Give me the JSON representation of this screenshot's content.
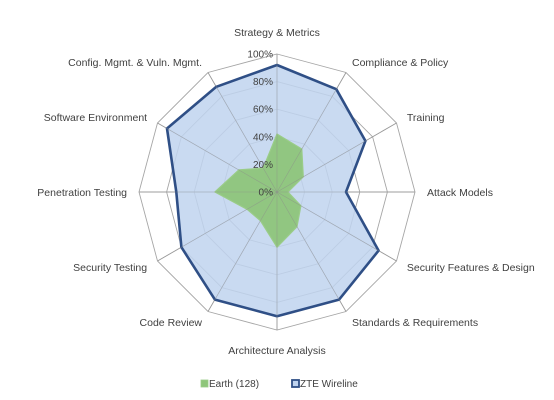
{
  "chart_data": {
    "type": "radar",
    "title": "",
    "categories": [
      "Strategy & Metrics",
      "Compliance & Policy",
      "Training",
      "Attack Models",
      "Security Features & Design",
      "Standards & Requirements",
      "Architecture Analysis",
      "Code Review",
      "Security Testing",
      "Penetration Testing",
      "Software Environment",
      "Config. Mgmt. & Vuln. Mgmt."
    ],
    "radial_ticks": [
      "0%",
      "20%",
      "40%",
      "60%",
      "80%",
      "100%"
    ],
    "rlim": [
      0,
      100
    ],
    "series": [
      {
        "name": "Earth (128)",
        "color_fill": "#8ec57a",
        "color_line": "#9acc88",
        "values": [
          42,
          36,
          22,
          8,
          20,
          29,
          40,
          24,
          25,
          45,
          32,
          20
        ]
      },
      {
        "name": "ZTE Wireline",
        "color_fill": "#bfd3ef",
        "color_line": "#2f4f86",
        "values": [
          92,
          86,
          74,
          50,
          85,
          90,
          90,
          90,
          80,
          73,
          92,
          88
        ]
      }
    ],
    "legend_position": "bottom",
    "grid": true
  }
}
